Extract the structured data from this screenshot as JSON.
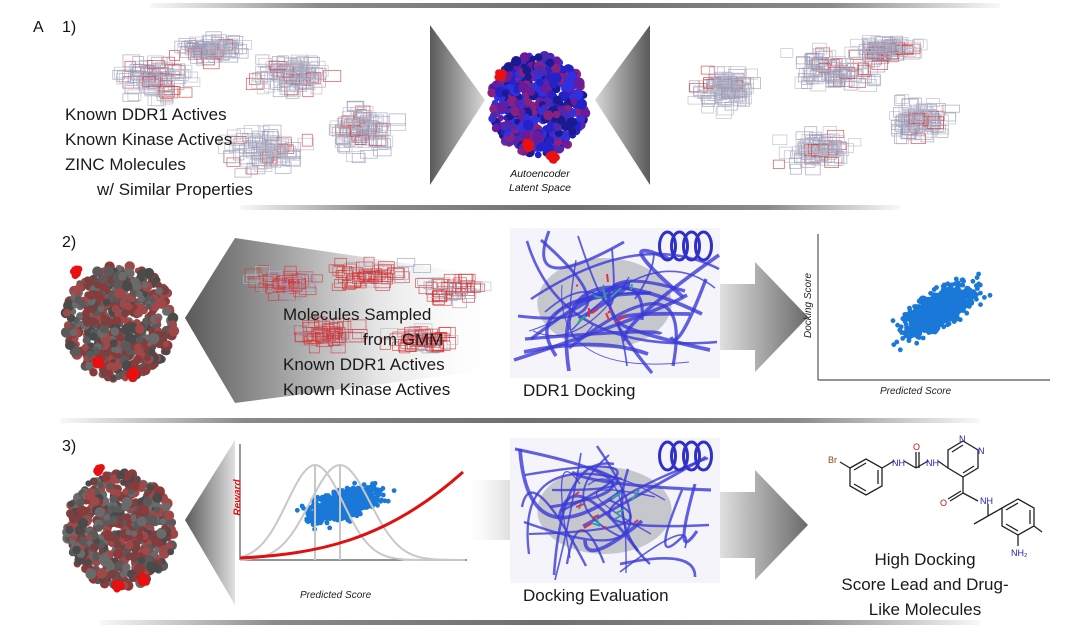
{
  "panel_letter": "A",
  "rows": [
    {
      "step": "1)",
      "lines": [
        "Known DDR1 Actives",
        "Known Kinase Actives",
        "ZINC Molecules",
        "w/ Similar Properties"
      ],
      "center_caption": [
        "Autoencoder",
        "Latent Space"
      ]
    },
    {
      "step": "2)",
      "lines": [
        "Molecules Sampled",
        "from GMM",
        "Known DDR1 Actives",
        "Known Kinase Actives"
      ],
      "docking_label": "DDR1 Docking",
      "plot": {
        "xlabel": "Predicted Score",
        "ylabel": "Docking Score"
      }
    },
    {
      "step": "3)",
      "docking_label": "Docking Evaluation",
      "plot": {
        "xlabel": "Predicted Score",
        "ylabel": "Reward"
      },
      "result_lines": [
        "High Docking",
        "Score Lead and Drug-",
        "Like Molecules"
      ],
      "molecule_labels": {
        "bromine": "Br",
        "amine": "NH",
        "amine2": "NH",
        "amino": "NH₂",
        "oxygen1": "O",
        "oxygen2": "O",
        "nitrogen1": "N",
        "nitrogen2": "N"
      }
    }
  ],
  "colors": {
    "cloud_red": "#d23a3a",
    "cloud_blue": "#2a2ad8",
    "scatter_blue": "#1a78d8",
    "reward_curve": "#e01010",
    "protein_blue": "#3a3ad8"
  }
}
